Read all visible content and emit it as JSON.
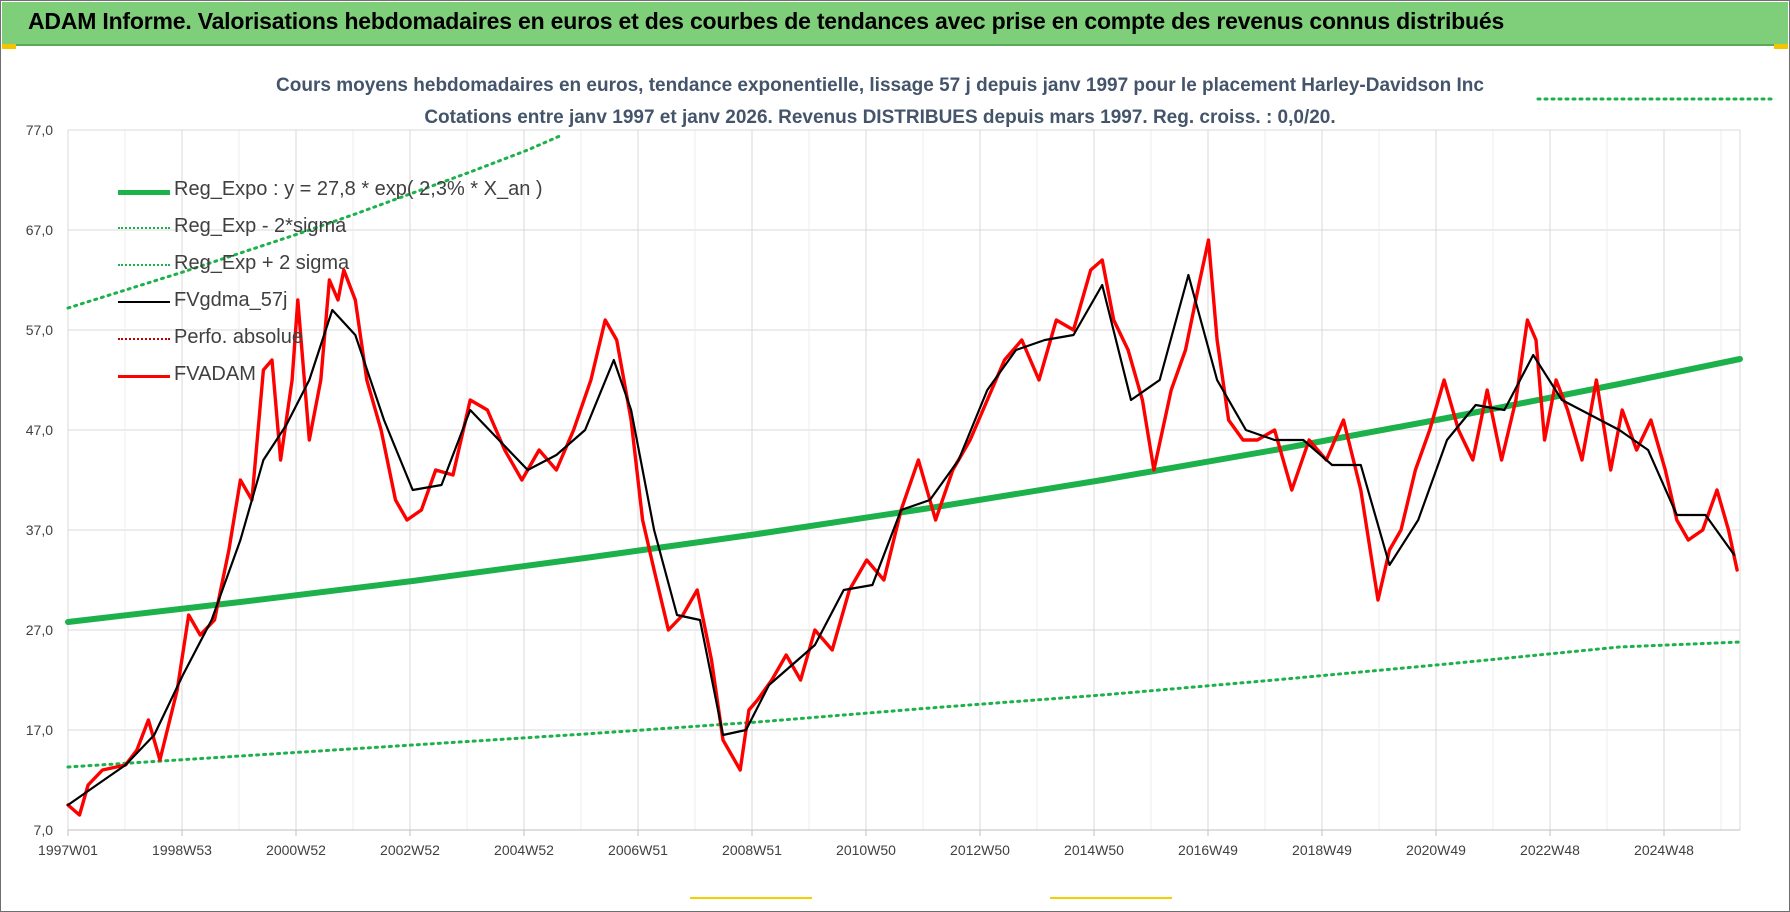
{
  "header": {
    "title": "ADAM Informe. Valorisations hebdomadaires en euros et des courbes de tendances avec prise en compte des revenus connus distribués"
  },
  "chart_data": {
    "type": "line",
    "title": "Cours moyens hebdomadaires en euros, tendance exponentielle, lissage 57 j depuis janv 1997  pour le placement Harley-Davidson Inc",
    "subtitle": "Cotations entre janv 1997 et janv 2026. Revenus DISTRIBUES depuis mars 1997.  Reg. croiss. : 0,0/20.",
    "xlabel": "",
    "ylabel": "",
    "ylim": [
      7,
      77
    ],
    "yticks": [
      "77,0",
      "67,0",
      "57,0",
      "47,0",
      "37,0",
      "27,0",
      "17,0",
      "7,0"
    ],
    "xticks": [
      "1997W01",
      "1998W53",
      "2000W52",
      "2002W52",
      "2004W52",
      "2006W51",
      "2008W51",
      "2010W50",
      "2012W50",
      "2014W50",
      "2016W49",
      "2018W49",
      "2020W49",
      "2022W48",
      "2024W48"
    ],
    "grid": true,
    "legend_position": "top-left",
    "x_range": [
      1997.0,
      2026.1
    ],
    "series": [
      {
        "name": "Reg_Expo : y = 27,8 * exp( 2,3% * X_an )",
        "style": "solid-thick",
        "color": "#1db14b",
        "x": [
          1997.0,
          2000.0,
          2003.0,
          2006.0,
          2009.0,
          2012.0,
          2015.0,
          2018.0,
          2021.0,
          2024.0,
          2026.1
        ],
        "values": [
          27.8,
          29.8,
          31.9,
          34.2,
          36.6,
          39.2,
          42.0,
          45.0,
          48.2,
          51.6,
          54.1
        ]
      },
      {
        "name": "Reg_Exp - 2*sigma",
        "style": "dotted",
        "color": "#1db14b",
        "x": [
          1997.0,
          2000.0,
          2003.0,
          2006.0,
          2009.0,
          2012.0,
          2015.0,
          2018.0,
          2021.0,
          2024.0,
          2026.1
        ],
        "values": [
          13.3,
          14.4,
          15.5,
          16.6,
          17.8,
          19.2,
          20.5,
          22.0,
          23.6,
          25.3,
          25.8
        ]
      },
      {
        "name": "Reg_Exp + 2 sigma",
        "style": "dotted",
        "color": "#1db14b",
        "x": [
          1997.0,
          1998.0,
          1999.0,
          2000.0,
          2001.0,
          2002.0,
          2003.0,
          2004.0,
          2005.0,
          2005.6
        ],
        "values": [
          59.2,
          61.0,
          62.8,
          64.7,
          66.6,
          68.6,
          70.7,
          72.8,
          75.0,
          76.5
        ]
      },
      {
        "name": "FVgdma_57j",
        "style": "solid-thin",
        "color": "#000000",
        "x": [
          1997.0,
          1997.5,
          1998.0,
          1998.5,
          1999.0,
          1999.5,
          2000.0,
          2000.4,
          2000.8,
          2001.2,
          2001.6,
          2002.0,
          2002.5,
          2003.0,
          2003.5,
          2004.0,
          2004.5,
          2005.0,
          2005.5,
          2006.0,
          2006.5,
          2006.8,
          2007.2,
          2007.6,
          2008.0,
          2008.4,
          2008.8,
          2009.2,
          2009.6,
          2010.0,
          2010.5,
          2011.0,
          2011.5,
          2012.0,
          2012.5,
          2013.0,
          2013.5,
          2014.0,
          2014.5,
          2015.0,
          2015.5,
          2016.0,
          2016.5,
          2017.0,
          2017.5,
          2018.0,
          2018.5,
          2019.0,
          2019.5,
          2020.0,
          2020.5,
          2021.0,
          2021.5,
          2022.0,
          2022.5,
          2023.0,
          2023.5,
          2024.0,
          2024.5,
          2025.0,
          2025.5,
          2026.0
        ],
        "values": [
          9.5,
          11.5,
          13.5,
          16.5,
          22.5,
          28.0,
          36.0,
          44.0,
          47.5,
          52.0,
          59.0,
          56.5,
          48.0,
          41.0,
          41.5,
          49.0,
          46.0,
          43.0,
          44.5,
          47.0,
          54.0,
          49.0,
          37.0,
          28.5,
          28.0,
          16.5,
          17.0,
          21.5,
          23.5,
          25.5,
          31.0,
          31.5,
          39.0,
          40.0,
          44.0,
          51.0,
          55.0,
          56.0,
          56.5,
          61.5,
          50.0,
          52.0,
          62.5,
          52.0,
          47.0,
          46.0,
          46.0,
          43.5,
          43.5,
          33.5,
          38.0,
          46.0,
          49.5,
          49.0,
          54.5,
          50.0,
          48.5,
          47.0,
          45.0,
          38.5,
          38.5,
          34.5
        ]
      },
      {
        "name": "Perfo. absolue",
        "style": "dotted-thin",
        "color": "#c00000",
        "x": [],
        "values": []
      },
      {
        "name": "FVADAM",
        "style": "solid",
        "color": "#ff0000",
        "x": [
          1997.0,
          1997.2,
          1997.35,
          1997.6,
          1998.0,
          1998.2,
          1998.4,
          1998.6,
          1998.9,
          1999.1,
          1999.3,
          1999.55,
          1999.8,
          2000.0,
          2000.2,
          2000.4,
          2000.55,
          2000.7,
          2000.9,
          2001.0,
          2001.2,
          2001.4,
          2001.55,
          2001.7,
          2001.8,
          2002.0,
          2002.2,
          2002.45,
          2002.7,
          2002.9,
          2003.15,
          2003.4,
          2003.7,
          2004.0,
          2004.3,
          2004.6,
          2004.9,
          2005.2,
          2005.5,
          2005.8,
          2006.1,
          2006.35,
          2006.55,
          2006.8,
          2007.0,
          2007.2,
          2007.45,
          2007.7,
          2007.95,
          2008.2,
          2008.4,
          2008.7,
          2008.85,
          2009.0,
          2009.25,
          2009.5,
          2009.75,
          2010.0,
          2010.3,
          2010.6,
          2010.9,
          2011.2,
          2011.5,
          2011.8,
          2012.1,
          2012.4,
          2012.7,
          2013.0,
          2013.3,
          2013.6,
          2013.9,
          2014.2,
          2014.5,
          2014.8,
          2015.0,
          2015.2,
          2015.45,
          2015.7,
          2015.9,
          2016.2,
          2016.45,
          2016.7,
          2016.85,
          2017.0,
          2017.2,
          2017.45,
          2017.7,
          2018.0,
          2018.3,
          2018.6,
          2018.9,
          2019.2,
          2019.5,
          2019.8,
          2020.0,
          2020.2,
          2020.45,
          2020.7,
          2020.95,
          2021.2,
          2021.45,
          2021.7,
          2021.95,
          2022.2,
          2022.4,
          2022.55,
          2022.7,
          2022.9,
          2023.1,
          2023.35,
          2023.6,
          2023.85,
          2024.05,
          2024.3,
          2024.55,
          2024.8,
          2025.0,
          2025.2,
          2025.45,
          2025.7,
          2025.9,
          2026.05
        ],
        "values": [
          9.5,
          8.5,
          11.5,
          13.0,
          13.5,
          15.0,
          18.0,
          14.0,
          21.0,
          28.5,
          26.5,
          28.0,
          35.0,
          42.0,
          40.0,
          53.0,
          54.0,
          44.0,
          52.0,
          60.0,
          46.0,
          52.0,
          62.0,
          60.0,
          63.0,
          60.0,
          52.0,
          47.0,
          40.0,
          38.0,
          39.0,
          43.0,
          42.5,
          50.0,
          49.0,
          45.0,
          42.0,
          45.0,
          43.0,
          47.0,
          52.0,
          58.0,
          56.0,
          48.0,
          38.0,
          33.0,
          27.0,
          28.5,
          31.0,
          24.0,
          16.0,
          13.0,
          19.0,
          20.0,
          22.0,
          24.5,
          22.0,
          27.0,
          25.0,
          31.0,
          34.0,
          32.0,
          39.0,
          44.0,
          38.0,
          43.0,
          46.0,
          50.0,
          54.0,
          56.0,
          52.0,
          58.0,
          57.0,
          63.0,
          64.0,
          58.0,
          55.0,
          50.0,
          43.0,
          51.0,
          55.0,
          62.0,
          66.0,
          56.0,
          48.0,
          46.0,
          46.0,
          47.0,
          41.0,
          46.0,
          44.0,
          48.0,
          41.0,
          30.0,
          35.0,
          37.0,
          43.0,
          47.0,
          52.0,
          47.0,
          44.0,
          51.0,
          44.0,
          50.0,
          58.0,
          56.0,
          46.0,
          52.0,
          49.0,
          44.0,
          52.0,
          43.0,
          49.0,
          45.0,
          48.0,
          43.0,
          38.0,
          36.0,
          37.0,
          41.0,
          37.0,
          33.0
        ]
      }
    ]
  }
}
